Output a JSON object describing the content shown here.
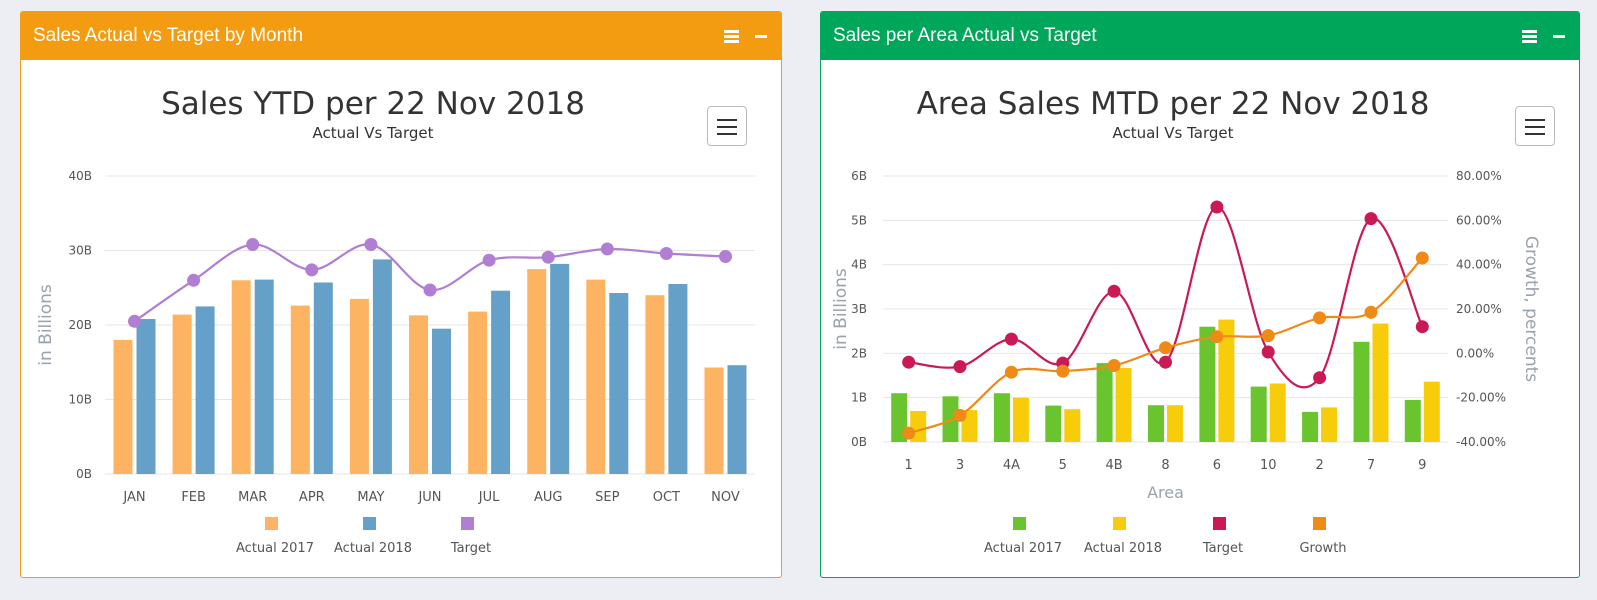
{
  "left_panel": {
    "title": "Sales Actual vs Target by Month"
  },
  "right_panel": {
    "title": "Sales per Area Actual vs Target"
  },
  "chart_data": [
    {
      "type": "bar",
      "title": "Sales YTD per 22 Nov 2018",
      "subtitle": "Actual Vs Target",
      "ylabel": "in Billions",
      "ylim": [
        0,
        40
      ],
      "yticks": [
        "0B",
        "10B",
        "20B",
        "30B",
        "40B"
      ],
      "categories": [
        "JAN",
        "FEB",
        "MAR",
        "APR",
        "MAY",
        "JUN",
        "JUL",
        "AUG",
        "SEP",
        "OCT",
        "NOV"
      ],
      "series": [
        {
          "name": "Actual 2017",
          "type": "bar",
          "color": "#fdb462",
          "values": [
            18.0,
            21.4,
            26.0,
            22.6,
            23.5,
            21.3,
            21.8,
            27.5,
            26.1,
            24.0,
            14.3
          ]
        },
        {
          "name": "Actual 2018",
          "type": "bar",
          "color": "#65a0c8",
          "values": [
            20.8,
            22.5,
            26.1,
            25.7,
            28.8,
            19.5,
            24.6,
            28.2,
            24.3,
            25.5,
            14.6
          ]
        },
        {
          "name": "Target",
          "type": "line",
          "color": "#b07ed3",
          "values": [
            20.5,
            26.0,
            30.8,
            27.4,
            30.8,
            24.7,
            28.7,
            29.1,
            30.2,
            29.6,
            29.2
          ]
        }
      ],
      "legend_position": "bottom",
      "grid": true
    },
    {
      "type": "bar",
      "title": "Area Sales MTD per 22 Nov 2018",
      "subtitle": "Actual Vs Target",
      "xlabel": "Area",
      "ylabel": "in Billions",
      "ylabel_right": "Growth, percents",
      "ylim": [
        0,
        6
      ],
      "yticks": [
        "0B",
        "1B",
        "2B",
        "3B",
        "4B",
        "5B",
        "6B"
      ],
      "ylim_right": [
        -40,
        80
      ],
      "yticks_right": [
        "-40.00%",
        "-20.00%",
        "0.00%",
        "20.00%",
        "40.00%",
        "60.00%",
        "80.00%"
      ],
      "categories": [
        "1",
        "3",
        "4A",
        "5",
        "4B",
        "8",
        "6",
        "10",
        "2",
        "7",
        "9"
      ],
      "series": [
        {
          "name": "Actual 2017",
          "type": "bar",
          "color": "#6ac42e",
          "values": [
            1.1,
            1.03,
            1.1,
            0.82,
            1.78,
            0.83,
            2.6,
            1.25,
            0.68,
            2.26,
            0.95
          ]
        },
        {
          "name": "Actual 2018",
          "type": "bar",
          "color": "#f7cc0a",
          "values": [
            0.7,
            0.72,
            1.0,
            0.74,
            1.67,
            0.83,
            2.76,
            1.32,
            0.78,
            2.67,
            1.36
          ]
        },
        {
          "name": "Target",
          "type": "line",
          "axis": "left",
          "color": "#c91a55",
          "values": [
            1.8,
            1.7,
            2.32,
            1.78,
            3.4,
            1.8,
            5.3,
            2.03,
            1.45,
            5.04,
            2.6
          ]
        },
        {
          "name": "Growth",
          "type": "line",
          "axis": "right",
          "color": "#f08a16",
          "values": [
            -36,
            -28,
            -8.5,
            -8,
            -5.5,
            2.5,
            7.5,
            8,
            16,
            18.5,
            43
          ]
        }
      ],
      "legend_position": "bottom",
      "grid": true
    }
  ]
}
